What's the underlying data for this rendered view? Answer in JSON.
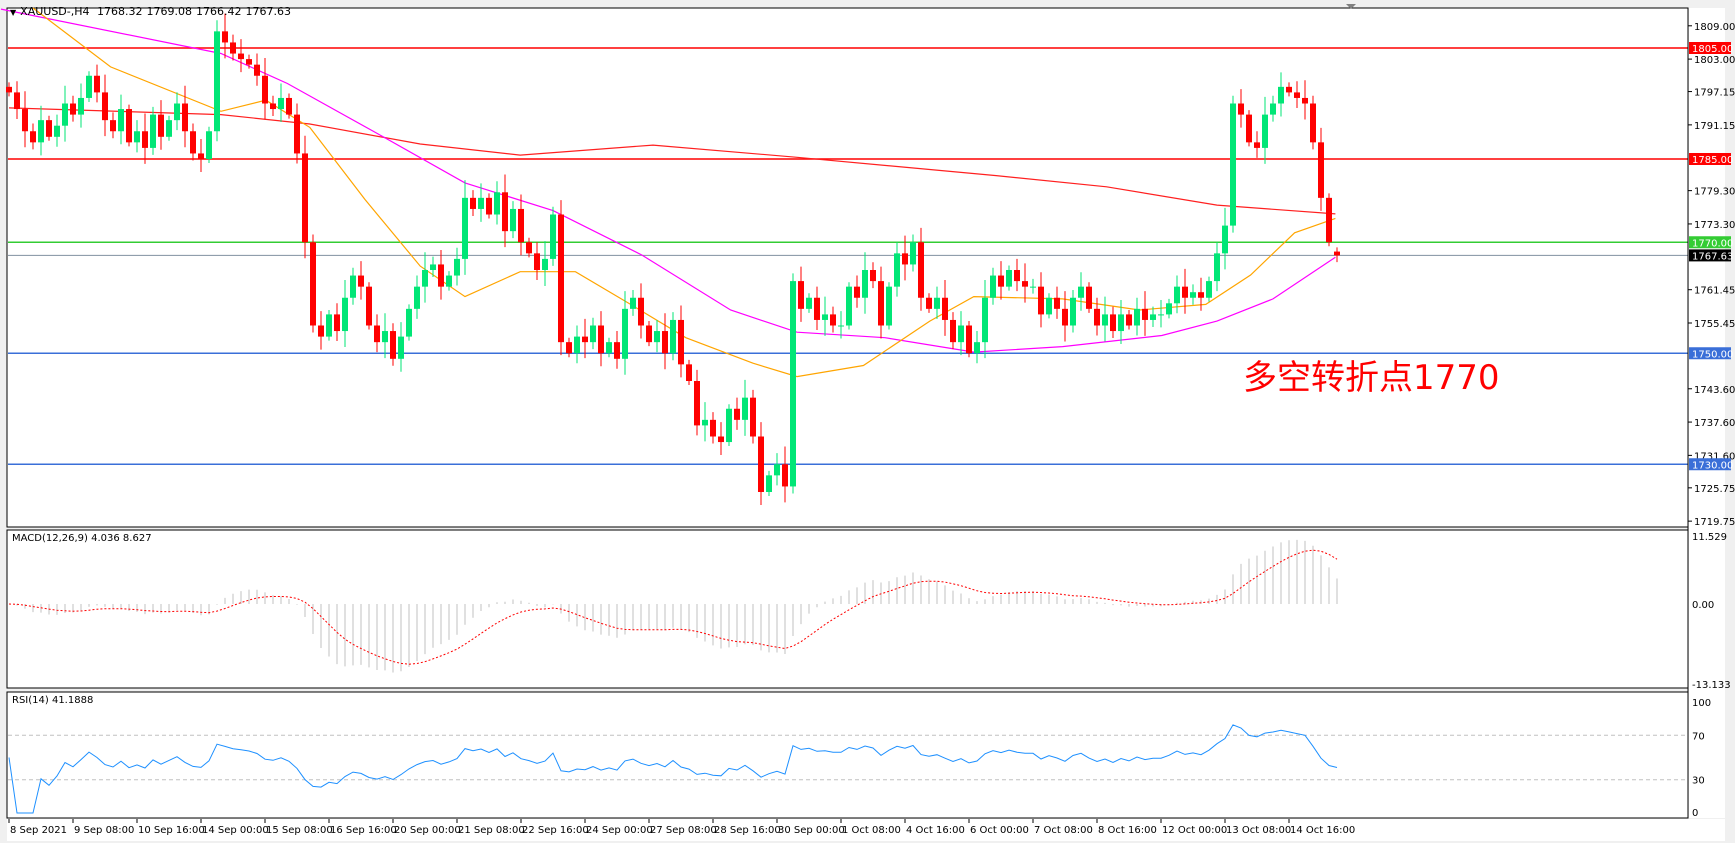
{
  "header": {
    "symbol": "XAUUSD-,H4",
    "open": "1768.32",
    "high": "1769.08",
    "low": "1766.42",
    "close": "1767.63"
  },
  "annotation": "多空转折点1770",
  "colors": {
    "bull": "#00e676",
    "bear": "#ff0000",
    "ma_slow": "#ff2020",
    "ma_mid": "#ff00ff",
    "ma_fast": "#ffa500",
    "rsi": "#1e90ff",
    "macd_hist": "#c0c0c0",
    "macd_signal": "#ff0000"
  },
  "price_axis": {
    "ticks": [
      "1809.00",
      "1803.00",
      "1797.15",
      "1791.15",
      "1779.30",
      "1773.30",
      "1761.45",
      "1755.45",
      "1743.60",
      "1737.60",
      "1731.60",
      "1725.75",
      "1719.75"
    ]
  },
  "levels": [
    {
      "price": 1805,
      "label": "1805.00",
      "color": "#ff0000"
    },
    {
      "price": 1785,
      "label": "1785.00",
      "color": "#ff0000"
    },
    {
      "price": 1770,
      "label": "1770.00",
      "color": "#33cc33"
    },
    {
      "price": 1750,
      "label": "1750.00",
      "color": "#3a6fd8"
    },
    {
      "price": 1730,
      "label": "1730.00",
      "color": "#3a6fd8"
    }
  ],
  "current_price": {
    "price": 1767.63,
    "label": "1767.63"
  },
  "time_axis": [
    "8 Sep 2021",
    "9 Sep 08:00",
    "10 Sep 16:00",
    "14 Sep 00:00",
    "15 Sep 08:00",
    "16 Sep 16:00",
    "20 Sep 00:00",
    "21 Sep 08:00",
    "22 Sep 16:00",
    "24 Sep 00:00",
    "27 Sep 08:00",
    "28 Sep 16:00",
    "30 Sep 00:00",
    "1 Oct 08:00",
    "4 Oct 16:00",
    "6 Oct 00:00",
    "7 Oct 08:00",
    "8 Oct 16:00",
    "12 Oct 00:00",
    "13 Oct 08:00",
    "14 Oct 16:00"
  ],
  "macd": {
    "label": "MACD(12,26,9) 4.036 8.627",
    "axis": [
      "11.529",
      "0.00",
      "-13.133"
    ],
    "max": 11.529,
    "min": -13.133
  },
  "rsi": {
    "label": "RSI(14) 41.1888",
    "axis": [
      "100",
      "70",
      "30",
      "0"
    ],
    "levels": [
      70,
      30
    ]
  },
  "chart_data": {
    "type": "candlestick",
    "timeframe": "H4",
    "ylim": [
      1719.75,
      1809.0
    ],
    "closes": [
      1797,
      1794,
      1790,
      1788,
      1792,
      1789,
      1791,
      1795,
      1793,
      1796,
      1800,
      1797,
      1792,
      1790,
      1794,
      1788,
      1790,
      1787,
      1793,
      1789,
      1792,
      1795,
      1790,
      1786,
      1785,
      1790,
      1808,
      1806,
      1804,
      1803,
      1802,
      1800,
      1795,
      1794,
      1796,
      1793,
      1786,
      1770,
      1755,
      1753,
      1757,
      1754,
      1760,
      1764,
      1762,
      1755,
      1752,
      1754,
      1749,
      1753,
      1758,
      1762,
      1765,
      1766,
      1762,
      1764,
      1767,
      1778,
      1776,
      1778,
      1775,
      1779,
      1772,
      1776,
      1770,
      1768,
      1765,
      1767,
      1775,
      1752,
      1750,
      1753,
      1752,
      1755,
      1750,
      1752,
      1749,
      1758,
      1760,
      1755,
      1752,
      1754,
      1750,
      1756,
      1748,
      1745,
      1737,
      1738,
      1735,
      1734,
      1740,
      1738,
      1742,
      1735,
      1725,
      1728,
      1730,
      1726,
      1763,
      1758,
      1760,
      1756,
      1757,
      1755,
      1755,
      1762,
      1760,
      1765,
      1763,
      1755,
      1762,
      1768,
      1766,
      1770,
      1760,
      1758,
      1760,
      1756,
      1752,
      1755,
      1750,
      1752,
      1760,
      1764,
      1762,
      1765,
      1763,
      1762,
      1762,
      1757,
      1760,
      1758,
      1755,
      1760,
      1762,
      1758,
      1755,
      1757,
      1754,
      1757,
      1755,
      1758,
      1756,
      1757,
      1757,
      1759,
      1762,
      1760,
      1761,
      1760,
      1763,
      1768,
      1773,
      1795,
      1793,
      1788,
      1787,
      1793,
      1795,
      1798,
      1797,
      1796,
      1795,
      1788,
      1778,
      1770,
      1767.63
    ],
    "moving_averages": [
      {
        "role": "slow",
        "points": [
          [
            0,
            1794.2
          ],
          [
            26.5,
            1793
          ],
          [
            37.6,
            1791.3
          ],
          [
            51.4,
            1787.7
          ],
          [
            63.9,
            1785.7
          ],
          [
            80.5,
            1787.5
          ],
          [
            98.5,
            1785.3
          ],
          [
            123.4,
            1782
          ],
          [
            137.2,
            1780
          ],
          [
            151,
            1776.7
          ],
          [
            165.8,
            1775.1
          ]
        ]
      },
      {
        "role": "mid",
        "points": [
          [
            -1,
            1812
          ],
          [
            26.5,
            1804
          ],
          [
            34.8,
            1798.6
          ],
          [
            45.9,
            1789.7
          ],
          [
            57,
            1780.7
          ],
          [
            68,
            1775.7
          ],
          [
            79.1,
            1767.7
          ],
          [
            90.2,
            1757.8
          ],
          [
            98.5,
            1753.8
          ],
          [
            109.5,
            1752.8
          ],
          [
            120.6,
            1750.2
          ],
          [
            131.7,
            1751.2
          ],
          [
            144.1,
            1753.2
          ],
          [
            151,
            1755.8
          ],
          [
            158,
            1759.8
          ],
          [
            165.8,
            1767.3
          ]
        ]
      },
      {
        "role": "fast",
        "points": [
          [
            3,
            1812.6
          ],
          [
            12.7,
            1801.6
          ],
          [
            26.5,
            1793.6
          ],
          [
            32.1,
            1795.6
          ],
          [
            37.6,
            1790.7
          ],
          [
            44.5,
            1777.7
          ],
          [
            51.4,
            1765.7
          ],
          [
            57,
            1760.2
          ],
          [
            63.9,
            1764.7
          ],
          [
            70.8,
            1764.7
          ],
          [
            77.7,
            1758.8
          ],
          [
            84.6,
            1752.8
          ],
          [
            93,
            1748.2
          ],
          [
            98.5,
            1745.8
          ],
          [
            106.8,
            1747.8
          ],
          [
            115.1,
            1755.8
          ],
          [
            120.6,
            1760.2
          ],
          [
            131.7,
            1759.8
          ],
          [
            141.3,
            1757.8
          ],
          [
            149.6,
            1758.8
          ],
          [
            155.2,
            1764.1
          ],
          [
            160.7,
            1771.7
          ],
          [
            165.8,
            1774.3
          ]
        ]
      }
    ]
  }
}
